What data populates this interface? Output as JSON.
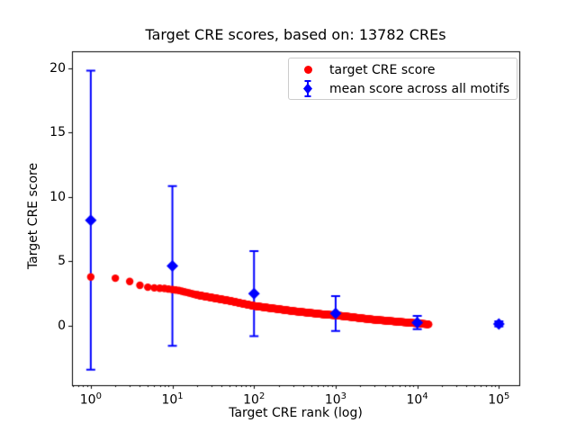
{
  "figure": {
    "title": "Target CRE scores, based on: 13782 CREs",
    "background": "#ffffff"
  },
  "axes": {
    "xlabel": "Target CRE rank (log)",
    "ylabel": "Target CRE score",
    "x_scale": "log",
    "xlim_log10": [
      -0.23,
      5.25
    ],
    "ylim": [
      -4.6,
      21.3
    ],
    "x_major_ticks_exp": [
      0,
      1,
      2,
      3,
      4,
      5
    ],
    "y_ticks": [
      0,
      5,
      10,
      15,
      20
    ],
    "frame_color": "#000000",
    "tick_color": "#000000"
  },
  "legend": {
    "entries": [
      {
        "label": "target CRE score",
        "marker": "circle",
        "color": "#ff0000"
      },
      {
        "label": "mean score across all motifs",
        "marker": "diamond-errorbar",
        "color": "#0000ff"
      }
    ]
  },
  "chart_data": {
    "type": "scatter",
    "title": "Target CRE scores, based on: 13782 CREs",
    "xlabel": "Target CRE rank (log)",
    "ylabel": "Target CRE score",
    "x_axis": {
      "scale": "log",
      "tick_exponents": [
        0,
        1,
        2,
        3,
        4,
        5
      ],
      "data_range": [
        1,
        100000
      ]
    },
    "y_axis": {
      "ticks": [
        0,
        5,
        10,
        15,
        20
      ],
      "shown_range": [
        -4.6,
        21.3
      ]
    },
    "legend_position": "upper right",
    "grid": false,
    "series": [
      {
        "name": "target CRE score",
        "type": "scatter",
        "marker": "circle",
        "color": "#ff0000",
        "n_points": 13782,
        "rank_range": [
          1,
          13782
        ],
        "anchor_points": [
          [
            1,
            3.8
          ],
          [
            2,
            3.7
          ],
          [
            3,
            3.45
          ],
          [
            4,
            3.15
          ],
          [
            5,
            3.0
          ],
          [
            6,
            2.95
          ],
          [
            7,
            2.92
          ],
          [
            8,
            2.9
          ],
          [
            10,
            2.82
          ],
          [
            12,
            2.75
          ],
          [
            15,
            2.6
          ],
          [
            20,
            2.4
          ],
          [
            30,
            2.2
          ],
          [
            50,
            1.95
          ],
          [
            70,
            1.75
          ],
          [
            100,
            1.55
          ],
          [
            150,
            1.4
          ],
          [
            200,
            1.3
          ],
          [
            300,
            1.15
          ],
          [
            500,
            1.0
          ],
          [
            700,
            0.9
          ],
          [
            1000,
            0.82
          ],
          [
            1500,
            0.7
          ],
          [
            2000,
            0.6
          ],
          [
            3000,
            0.48
          ],
          [
            5000,
            0.36
          ],
          [
            7000,
            0.28
          ],
          [
            10000,
            0.2
          ],
          [
            13782,
            0.12
          ]
        ]
      },
      {
        "name": "mean score across all motifs",
        "type": "errorbar",
        "marker": "diamond",
        "color": "#0000ff",
        "x": [
          1,
          10,
          100,
          1000,
          10000,
          100000
        ],
        "y": [
          8.2,
          4.65,
          2.5,
          0.96,
          0.26,
          0.15
        ],
        "yerr": [
          11.6,
          6.2,
          3.3,
          1.35,
          0.52,
          0.2
        ]
      }
    ]
  }
}
